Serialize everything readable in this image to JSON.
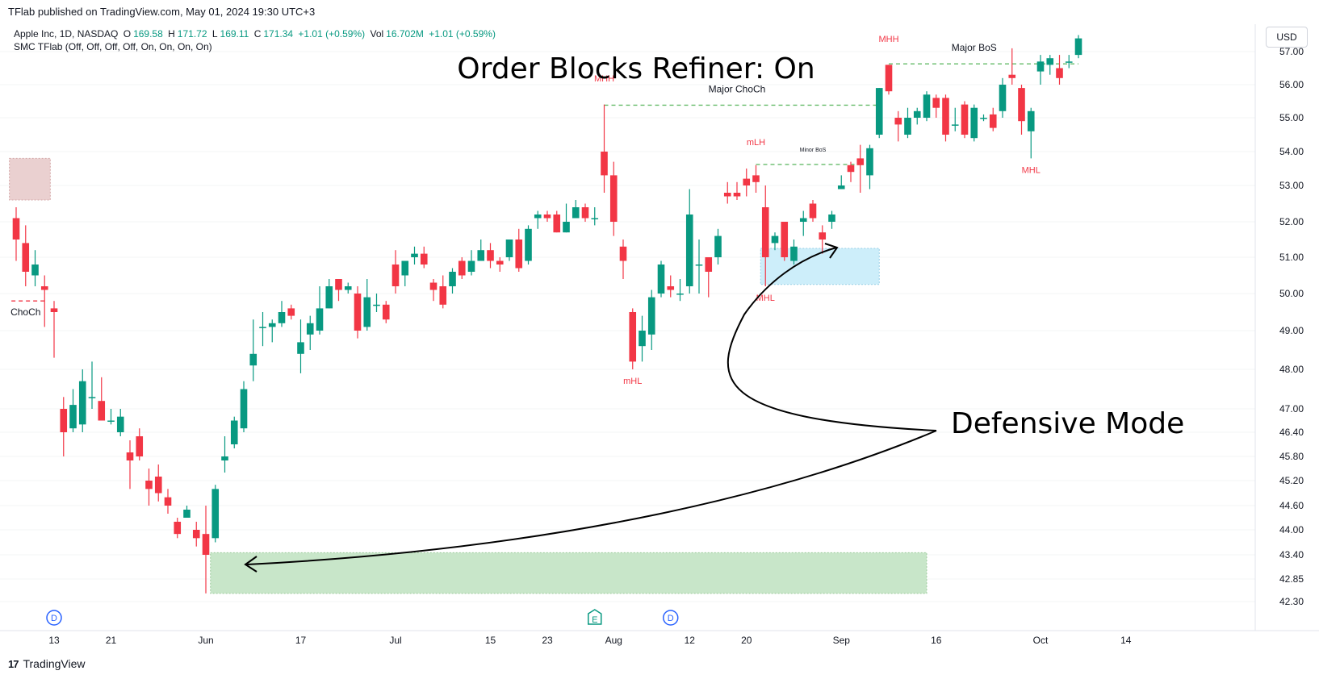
{
  "header": {
    "published_text": "TFlab published on TradingView.com, May 01, 2024 19:30 UTC+3"
  },
  "legend": {
    "symbol": "Apple Inc, 1D, NASDAQ",
    "open_label": "O",
    "open": "169.58",
    "high_label": "H",
    "high": "171.72",
    "low_label": "L",
    "low": "169.11",
    "close_label": "C",
    "close": "171.34",
    "change": "+1.01 (+0.59%)",
    "vol_label": "Vol",
    "volume": "16.702M",
    "vol_change": "+1.01 (+0.59%)",
    "indicator": "SMC TFlab (Off, Off, Off, Off, On, On, On, On)"
  },
  "currency": "USD",
  "brand": {
    "logo": "17",
    "name": "TradingView"
  },
  "colors": {
    "up": "#089981",
    "down": "#f23645",
    "structure_label": "#f23645",
    "bullish_ob": "#c8e6c9",
    "refined_ob": "#cdeefa",
    "bearish_ob": "#ead0d0",
    "bos_line": "#66bb6a",
    "choch_line": "#f23645"
  },
  "annotations": {
    "title": "Order Blocks Refiner: On",
    "defensive": "Defensive Mode"
  },
  "chart_data": {
    "type": "candlestick",
    "y_ticks": [
      "57.00",
      "56.00",
      "55.00",
      "54.00",
      "53.00",
      "52.00",
      "51.00",
      "50.00",
      "49.00",
      "48.00",
      "47.00",
      "46.40",
      "45.80",
      "45.20",
      "44.60",
      "44.00",
      "43.40",
      "42.85",
      "42.30"
    ],
    "x_ticks": [
      {
        "label": "13",
        "bar": 4
      },
      {
        "label": "21",
        "bar": 10
      },
      {
        "label": "Jun",
        "bar": 20
      },
      {
        "label": "17",
        "bar": 30
      },
      {
        "label": "Jul",
        "bar": 40
      },
      {
        "label": "15",
        "bar": 50
      },
      {
        "label": "23",
        "bar": 56
      },
      {
        "label": "Aug",
        "bar": 63
      },
      {
        "label": "12",
        "bar": 71
      },
      {
        "label": "20",
        "bar": 77
      },
      {
        "label": "Sep",
        "bar": 87
      },
      {
        "label": "16",
        "bar": 97
      },
      {
        "label": "Oct",
        "bar": 108
      },
      {
        "label": "14",
        "bar": 117
      }
    ],
    "candles": [
      [
        52.1,
        51.5,
        52.4,
        50.9
      ],
      [
        51.4,
        50.6,
        51.9,
        50.2
      ],
      [
        50.5,
        50.8,
        51.2,
        50.2
      ],
      [
        50.2,
        50.1,
        50.5,
        49.1
      ],
      [
        49.6,
        49.5,
        49.8,
        48.3
      ],
      [
        47.0,
        46.4,
        47.3,
        45.8
      ],
      [
        46.5,
        47.1,
        47.5,
        46.4
      ],
      [
        46.6,
        47.7,
        48.0,
        46.4
      ],
      [
        47.3,
        47.3,
        48.2,
        47.0
      ],
      [
        47.2,
        46.7,
        47.8,
        46.7
      ],
      [
        46.7,
        46.7,
        47.0,
        46.6
      ],
      [
        46.4,
        46.8,
        47.0,
        46.3
      ],
      [
        45.9,
        45.7,
        46.2,
        45.0
      ],
      [
        46.3,
        45.8,
        46.5,
        45.7
      ],
      [
        45.2,
        45.0,
        45.5,
        44.6
      ],
      [
        45.3,
        44.9,
        45.6,
        44.7
      ],
      [
        44.8,
        44.6,
        45.0,
        44.4
      ],
      [
        44.2,
        43.9,
        44.3,
        43.8
      ],
      [
        44.3,
        44.5,
        44.6,
        44.3
      ],
      [
        44.0,
        43.8,
        44.2,
        43.6
      ],
      [
        43.9,
        43.4,
        44.6,
        42.5
      ],
      [
        43.8,
        45.0,
        45.1,
        43.7
      ],
      [
        45.7,
        45.8,
        46.3,
        45.4
      ],
      [
        46.1,
        46.7,
        46.8,
        46.0
      ],
      [
        46.5,
        47.5,
        47.7,
        46.4
      ],
      [
        48.1,
        48.4,
        49.3,
        47.7
      ],
      [
        49.1,
        49.1,
        49.5,
        48.6
      ],
      [
        49.1,
        49.2,
        49.3,
        48.7
      ],
      [
        49.2,
        49.5,
        49.8,
        49.1
      ],
      [
        49.6,
        49.4,
        49.7,
        49.3
      ],
      [
        48.4,
        48.7,
        49.3,
        47.9
      ],
      [
        48.9,
        49.2,
        49.4,
        48.5
      ],
      [
        49.0,
        49.6,
        50.2,
        48.9
      ],
      [
        49.6,
        50.2,
        50.4,
        49.6
      ],
      [
        50.4,
        50.1,
        50.4,
        49.8
      ],
      [
        50.1,
        50.2,
        50.3,
        50.0
      ],
      [
        50.0,
        49.0,
        50.2,
        48.8
      ],
      [
        49.1,
        49.9,
        50.4,
        49.0
      ],
      [
        49.7,
        49.7,
        50.0,
        49.5
      ],
      [
        49.7,
        49.3,
        49.8,
        49.2
      ],
      [
        50.8,
        50.2,
        51.2,
        50.0
      ],
      [
        50.5,
        50.9,
        50.9,
        50.2
      ],
      [
        51.0,
        51.1,
        51.3,
        50.8
      ],
      [
        51.1,
        50.8,
        51.3,
        50.7
      ],
      [
        50.3,
        50.1,
        50.4,
        49.8
      ],
      [
        50.2,
        49.7,
        50.5,
        49.6
      ],
      [
        50.2,
        50.6,
        50.7,
        50.0
      ],
      [
        50.9,
        50.5,
        51.0,
        50.4
      ],
      [
        50.6,
        50.9,
        51.2,
        50.5
      ],
      [
        50.9,
        51.2,
        51.5,
        50.9
      ],
      [
        51.2,
        50.9,
        51.4,
        50.7
      ],
      [
        50.9,
        50.8,
        51.0,
        50.6
      ],
      [
        51.0,
        51.5,
        51.5,
        50.9
      ],
      [
        51.5,
        50.7,
        51.8,
        50.6
      ],
      [
        50.9,
        51.8,
        51.9,
        50.8
      ],
      [
        52.1,
        52.2,
        52.3,
        51.8
      ],
      [
        52.2,
        52.1,
        52.3,
        52.0
      ],
      [
        52.2,
        51.7,
        52.3,
        51.7
      ],
      [
        51.7,
        52.0,
        52.5,
        51.7
      ],
      [
        52.1,
        52.4,
        52.6,
        52.1
      ],
      [
        52.4,
        52.1,
        52.5,
        52.0
      ],
      [
        52.1,
        52.1,
        52.4,
        51.9
      ],
      [
        54.0,
        53.3,
        55.4,
        52.8
      ],
      [
        53.3,
        52.0,
        53.7,
        51.6
      ],
      [
        51.3,
        50.9,
        51.5,
        50.4
      ],
      [
        49.5,
        48.2,
        49.6,
        48.0
      ],
      [
        48.6,
        49.0,
        49.4,
        48.2
      ],
      [
        48.9,
        49.9,
        50.1,
        48.5
      ],
      [
        50.0,
        50.8,
        50.9,
        49.9
      ],
      [
        50.2,
        50.1,
        50.5,
        49.9
      ],
      [
        50.0,
        50.0,
        50.4,
        49.8
      ],
      [
        50.2,
        52.2,
        52.9,
        50.0
      ],
      [
        50.8,
        50.8,
        51.5,
        50.0
      ],
      [
        51.0,
        50.6,
        51.0,
        49.9
      ],
      [
        51.0,
        51.6,
        51.8,
        50.8
      ],
      [
        52.8,
        52.7,
        53.1,
        52.5
      ],
      [
        52.8,
        52.7,
        53.1,
        52.6
      ],
      [
        53.2,
        53.0,
        53.5,
        52.7
      ],
      [
        53.3,
        53.1,
        53.6,
        52.8
      ],
      [
        52.4,
        51.0,
        53.0,
        50.2
      ],
      [
        51.4,
        51.6,
        51.7,
        51.2
      ],
      [
        52.0,
        51.0,
        52.0,
        50.9
      ],
      [
        50.9,
        51.3,
        51.5,
        50.8
      ],
      [
        52.0,
        52.1,
        52.3,
        51.6
      ],
      [
        52.5,
        52.1,
        52.6,
        52.0
      ],
      [
        51.7,
        51.5,
        51.9,
        51.1
      ],
      [
        52.0,
        52.2,
        52.3,
        51.8
      ],
      [
        52.9,
        53.0,
        53.3,
        52.9
      ],
      [
        53.6,
        53.4,
        53.7,
        53.1
      ],
      [
        53.8,
        53.6,
        54.2,
        52.8
      ],
      [
        53.3,
        54.1,
        54.2,
        52.9
      ],
      [
        54.5,
        55.9,
        55.9,
        54.4
      ],
      [
        56.6,
        55.8,
        56.6,
        55.7
      ],
      [
        55.0,
        54.8,
        55.2,
        54.3
      ],
      [
        54.5,
        55.0,
        55.3,
        54.4
      ],
      [
        55.0,
        55.2,
        55.3,
        54.8
      ],
      [
        55.0,
        55.7,
        55.8,
        54.9
      ],
      [
        55.6,
        55.3,
        55.7,
        55.0
      ],
      [
        55.6,
        54.5,
        55.7,
        54.3
      ],
      [
        54.8,
        54.8,
        55.3,
        54.6
      ],
      [
        55.4,
        54.5,
        55.5,
        54.4
      ],
      [
        54.4,
        55.3,
        55.4,
        54.3
      ],
      [
        55.0,
        55.0,
        55.1,
        54.9
      ],
      [
        55.1,
        54.7,
        55.3,
        54.6
      ],
      [
        55.2,
        56.0,
        56.2,
        55.0
      ],
      [
        56.3,
        56.2,
        57.1,
        56.0
      ],
      [
        55.9,
        54.9,
        56.0,
        54.5
      ],
      [
        54.6,
        55.2,
        55.3,
        53.8
      ],
      [
        56.4,
        56.7,
        56.9,
        56.0
      ],
      [
        56.6,
        56.8,
        56.9,
        56.3
      ],
      [
        56.5,
        56.2,
        56.9,
        56.0
      ],
      [
        56.7,
        56.7,
        56.9,
        56.5
      ],
      [
        56.9,
        57.4,
        57.5,
        56.8
      ]
    ],
    "order_blocks": [
      {
        "type": "bullish",
        "from_bar": 21,
        "to_bar": 96,
        "top": 43.45,
        "bottom": 42.5
      },
      {
        "type": "refined-bullish",
        "from_bar": 79,
        "to_bar": 91,
        "top": 51.25,
        "bottom": 50.25
      },
      {
        "type": "bearish",
        "from_bar": -0.2,
        "to_bar": 3.6,
        "top": 53.8,
        "bottom": 52.6
      }
    ],
    "structure_lines": [
      {
        "type": "choch",
        "from_bar": 62,
        "to_bar": 91,
        "price": 55.38,
        "label": "Major ChoCh",
        "label_bar": 76
      },
      {
        "type": "bos",
        "from_bar": 78,
        "to_bar": 89,
        "price": 53.62,
        "label": "Minor BoS",
        "label_bar": 84
      },
      {
        "type": "bos",
        "from_bar": 92,
        "to_bar": 112,
        "price": 56.63,
        "label": "Major BoS",
        "label_bar": 101
      },
      {
        "type": "choch-left",
        "from_bar": -0.5,
        "to_bar": 3,
        "price": 49.8,
        "label": "ChoCh",
        "label_bar": 1
      }
    ],
    "swing_labels": [
      {
        "text": "MHH",
        "bar": 62,
        "price": 55.8,
        "pos": "above"
      },
      {
        "text": "mLH",
        "bar": 78,
        "price": 53.9,
        "pos": "above"
      },
      {
        "text": "MHH",
        "bar": 92,
        "price": 57.0,
        "pos": "above"
      },
      {
        "text": "mHL",
        "bar": 65,
        "price": 48.0,
        "pos": "below"
      },
      {
        "text": "MHL",
        "bar": 79,
        "price": 50.2,
        "pos": "below"
      },
      {
        "text": "MHL",
        "bar": 107,
        "price": 53.8,
        "pos": "below"
      }
    ],
    "events": [
      {
        "badge": "D",
        "bar": 4
      },
      {
        "badge": "E",
        "bar": 61
      },
      {
        "badge": "D",
        "bar": 69
      }
    ]
  }
}
